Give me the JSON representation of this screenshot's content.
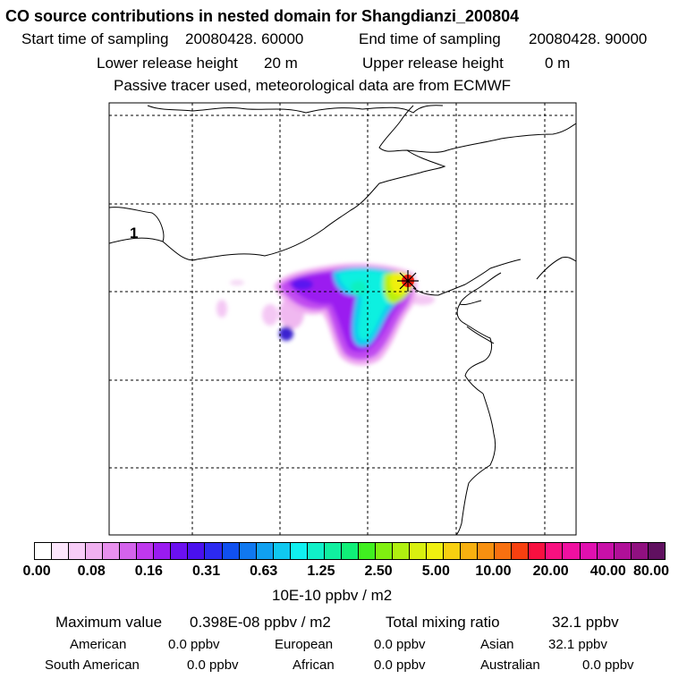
{
  "header": {
    "title": "CO  source contributions in nested domain for Shangdianzi_200804",
    "start_label": "Start time of sampling",
    "start_value": "20080428. 60000",
    "end_label": "End time of sampling",
    "end_value": "20080428. 90000",
    "lower_label": "Lower release height",
    "lower_value": "20 m",
    "upper_label": "Upper release height",
    "upper_value": "0 m",
    "note": "Passive tracer used, meteorological data are from ECMWF"
  },
  "map": {
    "region_label": "1",
    "site_marker": "star-marker"
  },
  "colorbar": {
    "colors": [
      "#ffffff",
      "#fde6fd",
      "#f8cdf8",
      "#f0b0f0",
      "#e890ee",
      "#d463ec",
      "#bf38ee",
      "#9a1bf0",
      "#6b10f0",
      "#4a10ee",
      "#2c2af0",
      "#1050f0",
      "#1078f0",
      "#10a0f0",
      "#10c8f0",
      "#10f0f0",
      "#10f0c8",
      "#10f0a0",
      "#10f078",
      "#40f020",
      "#80f010",
      "#b0f010",
      "#d8f010",
      "#f0f010",
      "#f8d010",
      "#f8b010",
      "#f89010",
      "#f87010",
      "#f84010",
      "#f81040",
      "#f81080",
      "#f010a0",
      "#e010b0",
      "#c810a8",
      "#b01098",
      "#901080",
      "#601060"
    ],
    "tick_labels": [
      "0.00",
      "0.08",
      "0.16",
      "0.31",
      "0.63",
      "1.25",
      "2.50",
      "5.00",
      "10.00",
      "20.00",
      "40.00",
      "80.00"
    ],
    "unit": "10E-10 ppbv / m2"
  },
  "summary": {
    "max_label": "Maximum value",
    "max_value": "0.398E-08 ppbv / m2",
    "total_label": "Total mixing ratio",
    "total_value": "32.1 ppbv",
    "american_label": "American",
    "american_value": "0.0 ppbv",
    "european_label": "European",
    "european_value": "0.0 ppbv",
    "asian_label": "Asian",
    "asian_value": "32.1 ppbv",
    "south_american_label": "South American",
    "south_american_value": "0.0 ppbv",
    "african_label": "African",
    "african_value": "0.0 ppbv",
    "australian_label": "Australian",
    "australian_value": "0.0 ppbv"
  }
}
